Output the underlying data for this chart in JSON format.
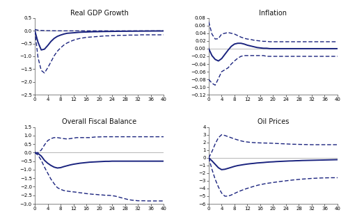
{
  "titles": [
    "Real GDP Growth",
    "Inflation",
    "Overall Fiscal Balance",
    "Oil Prices"
  ],
  "line_color": "#1a237e",
  "zero_line_color": "#aaaaaa",
  "horizon": 41,
  "panels": {
    "gdp": {
      "ylim": [
        -2.5,
        0.5
      ],
      "yticks": [
        0.5,
        0,
        -0.5,
        -1.0,
        -1.5,
        -2.0,
        -2.5
      ],
      "median": [
        0,
        -0.45,
        -0.75,
        -0.72,
        -0.58,
        -0.42,
        -0.3,
        -0.22,
        -0.17,
        -0.13,
        -0.1,
        -0.09,
        -0.08,
        -0.07,
        -0.06,
        -0.055,
        -0.05,
        -0.045,
        -0.04,
        -0.038,
        -0.035,
        -0.032,
        -0.03,
        -0.028,
        -0.026,
        -0.024,
        -0.022,
        -0.021,
        -0.02,
        -0.019,
        -0.018,
        -0.017,
        -0.016,
        -0.015,
        -0.014,
        -0.013,
        -0.012,
        -0.011,
        -0.01,
        -0.01,
        -0.01
      ],
      "upper": [
        0.05,
        0.02,
        0.01,
        0.005,
        0.002,
        0.0,
        -0.002,
        -0.003,
        -0.004,
        -0.005,
        -0.005,
        -0.005,
        -0.005,
        -0.005,
        -0.005,
        -0.005,
        -0.005,
        -0.005,
        -0.005,
        -0.005,
        -0.005,
        -0.005,
        -0.005,
        -0.005,
        -0.005,
        -0.005,
        -0.005,
        -0.005,
        -0.005,
        -0.005,
        -0.005,
        -0.005,
        -0.005,
        -0.005,
        -0.005,
        -0.005,
        -0.005,
        -0.005,
        -0.005,
        -0.005,
        -0.005
      ],
      "lower": [
        0,
        -1.05,
        -1.55,
        -1.65,
        -1.45,
        -1.22,
        -0.98,
        -0.8,
        -0.67,
        -0.56,
        -0.48,
        -0.42,
        -0.37,
        -0.33,
        -0.3,
        -0.28,
        -0.26,
        -0.25,
        -0.24,
        -0.23,
        -0.22,
        -0.21,
        -0.2,
        -0.2,
        -0.19,
        -0.19,
        -0.18,
        -0.18,
        -0.18,
        -0.17,
        -0.17,
        -0.17,
        -0.17,
        -0.16,
        -0.16,
        -0.16,
        -0.16,
        -0.16,
        -0.16,
        -0.16,
        -0.16
      ]
    },
    "inflation": {
      "ylim": [
        -0.12,
        0.08
      ],
      "yticks": [
        0.08,
        0.06,
        0.04,
        0.02,
        0,
        -0.02,
        -0.04,
        -0.06,
        -0.08,
        -0.1,
        -0.12
      ],
      "median": [
        0,
        -0.018,
        -0.028,
        -0.032,
        -0.026,
        -0.015,
        -0.004,
        0.006,
        0.012,
        0.014,
        0.014,
        0.012,
        0.009,
        0.007,
        0.005,
        0.003,
        0.002,
        0.001,
        0.001,
        0.0,
        0.0,
        0.0,
        0.0,
        0.0,
        0.0,
        0.0,
        0.0,
        0.0,
        0.0,
        0.0,
        0.0,
        0.0,
        0.0,
        0.0,
        0.0,
        0.0,
        0.0,
        0.0,
        0.0,
        0.0,
        0.0
      ],
      "upper": [
        0.07,
        0.038,
        0.025,
        0.026,
        0.038,
        0.04,
        0.042,
        0.04,
        0.038,
        0.034,
        0.03,
        0.027,
        0.025,
        0.024,
        0.022,
        0.021,
        0.02,
        0.019,
        0.019,
        0.018,
        0.018,
        0.018,
        0.018,
        0.018,
        0.018,
        0.018,
        0.018,
        0.018,
        0.018,
        0.018,
        0.018,
        0.018,
        0.018,
        0.018,
        0.018,
        0.018,
        0.018,
        0.018,
        0.018,
        0.018,
        0.018
      ],
      "lower": [
        -0.08,
        -0.09,
        -0.095,
        -0.078,
        -0.06,
        -0.055,
        -0.05,
        -0.04,
        -0.032,
        -0.025,
        -0.02,
        -0.018,
        -0.018,
        -0.018,
        -0.018,
        -0.018,
        -0.018,
        -0.018,
        -0.02,
        -0.02,
        -0.02,
        -0.02,
        -0.02,
        -0.02,
        -0.02,
        -0.02,
        -0.02,
        -0.02,
        -0.02,
        -0.02,
        -0.02,
        -0.02,
        -0.02,
        -0.02,
        -0.02,
        -0.02,
        -0.02,
        -0.02,
        -0.02,
        -0.02,
        -0.02
      ]
    },
    "fiscal": {
      "ylim": [
        -3.0,
        1.5
      ],
      "yticks": [
        1.5,
        1.0,
        0.5,
        0,
        -0.5,
        -1.0,
        -1.5,
        -2.0,
        -2.5,
        -3.0
      ],
      "median": [
        0,
        -0.05,
        -0.2,
        -0.45,
        -0.62,
        -0.75,
        -0.85,
        -0.9,
        -0.88,
        -0.82,
        -0.77,
        -0.72,
        -0.68,
        -0.65,
        -0.62,
        -0.6,
        -0.58,
        -0.56,
        -0.55,
        -0.54,
        -0.53,
        -0.52,
        -0.51,
        -0.51,
        -0.5,
        -0.5,
        -0.5,
        -0.5,
        -0.5,
        -0.5,
        -0.5,
        -0.5,
        -0.5,
        -0.5,
        -0.5,
        -0.5,
        -0.5,
        -0.5,
        -0.5,
        -0.5,
        -0.5
      ],
      "upper": [
        0.0,
        0.0,
        0.15,
        0.45,
        0.7,
        0.82,
        0.88,
        0.88,
        0.85,
        0.82,
        0.8,
        0.82,
        0.85,
        0.88,
        0.88,
        0.88,
        0.88,
        0.88,
        0.9,
        0.92,
        0.92,
        0.93,
        0.93,
        0.93,
        0.93,
        0.93,
        0.93,
        0.93,
        0.93,
        0.93,
        0.93,
        0.93,
        0.93,
        0.93,
        0.93,
        0.93,
        0.93,
        0.93,
        0.93,
        0.93,
        0.93
      ],
      "lower": [
        0.0,
        -0.15,
        -0.45,
        -0.85,
        -1.2,
        -1.55,
        -1.82,
        -2.05,
        -2.15,
        -2.22,
        -2.25,
        -2.28,
        -2.3,
        -2.32,
        -2.35,
        -2.37,
        -2.4,
        -2.42,
        -2.44,
        -2.45,
        -2.47,
        -2.48,
        -2.5,
        -2.5,
        -2.52,
        -2.55,
        -2.6,
        -2.65,
        -2.7,
        -2.75,
        -2.78,
        -2.8,
        -2.82,
        -2.82,
        -2.82,
        -2.83,
        -2.83,
        -2.83,
        -2.83,
        -2.83,
        -2.83
      ]
    },
    "oil": {
      "ylim": [
        -6.0,
        4.0
      ],
      "yticks": [
        4,
        3,
        2,
        1,
        0,
        -1,
        -2,
        -3,
        -4,
        -5,
        -6
      ],
      "median": [
        0,
        -0.4,
        -0.85,
        -1.3,
        -1.55,
        -1.5,
        -1.38,
        -1.25,
        -1.12,
        -1.02,
        -0.95,
        -0.88,
        -0.82,
        -0.77,
        -0.73,
        -0.68,
        -0.65,
        -0.62,
        -0.58,
        -0.55,
        -0.53,
        -0.5,
        -0.48,
        -0.46,
        -0.44,
        -0.42,
        -0.41,
        -0.39,
        -0.38,
        -0.36,
        -0.35,
        -0.34,
        -0.33,
        -0.32,
        -0.31,
        -0.3,
        -0.29,
        -0.28,
        -0.27,
        -0.26,
        -0.25
      ],
      "upper": [
        0.0,
        0.8,
        1.8,
        2.6,
        3.0,
        2.9,
        2.75,
        2.6,
        2.45,
        2.32,
        2.2,
        2.1,
        2.05,
        2.0,
        1.97,
        1.95,
        1.93,
        1.92,
        1.91,
        1.9,
        1.88,
        1.86,
        1.84,
        1.82,
        1.8,
        1.78,
        1.76,
        1.75,
        1.74,
        1.73,
        1.72,
        1.71,
        1.7,
        1.7,
        1.7,
        1.7,
        1.7,
        1.7,
        1.7,
        1.7,
        1.7
      ],
      "lower": [
        0.0,
        -1.5,
        -2.8,
        -3.8,
        -4.6,
        -5.0,
        -5.0,
        -4.85,
        -4.65,
        -4.45,
        -4.28,
        -4.12,
        -3.98,
        -3.85,
        -3.72,
        -3.6,
        -3.5,
        -3.42,
        -3.34,
        -3.28,
        -3.22,
        -3.16,
        -3.1,
        -3.05,
        -3.0,
        -2.95,
        -2.9,
        -2.86,
        -2.82,
        -2.78,
        -2.75,
        -2.72,
        -2.69,
        -2.67,
        -2.65,
        -2.63,
        -2.62,
        -2.61,
        -2.6,
        -2.6,
        -2.6
      ]
    }
  },
  "xticks": [
    0,
    4,
    8,
    12,
    16,
    20,
    24,
    28,
    32,
    36,
    40
  ],
  "background_color": "#ffffff"
}
